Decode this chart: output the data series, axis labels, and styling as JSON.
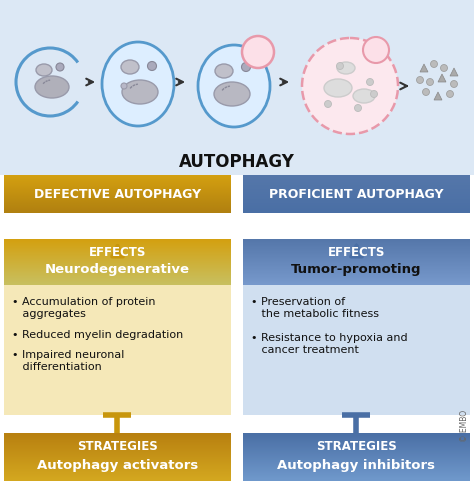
{
  "title": "AUTOPHAGY",
  "top_bg": "#dce8f5",
  "white_bg": "#ffffff",
  "left_header_text": "DEFECTIVE AUTOPHAGY",
  "right_header_text": "PROFICIENT AUTOPHAGY",
  "left_gold": "#c8960c",
  "left_gold_light": "#e8c040",
  "right_blue_dark": "#4a6fa5",
  "right_blue_light": "#8aaad0",
  "left_effects_label": "EFFECTS",
  "left_effects_sublabel": "Neurodegenerative",
  "right_effects_label": "EFFECTS",
  "right_effects_sublabel": "Tumor-promoting",
  "left_bullet_bg": "#f5e8b8",
  "right_bullet_bg": "#d0dff0",
  "left_bullets": [
    "• Accumulation of protein\n   aggregates",
    "• Reduced myelin degradation",
    "• Impaired neuronal\n   differentiation"
  ],
  "right_bullets": [
    "• Preservation of\n   the metabolic fitness",
    "• Resistance to hypoxia and\n   cancer treatment"
  ],
  "left_strat_label": "STRATEGIES",
  "left_strat_sub": "Autophagy activators",
  "right_strat_label": "STRATEGIES",
  "right_strat_sub": "Autophagy inhibitors",
  "left_arrow_color": "#c8960c",
  "right_arrow_color": "#4a6fa5",
  "copyright": "© EMBO",
  "cell_blue": "#5599cc",
  "cell_pink": "#e899aa",
  "cell_fill_blue": "#ddeeff",
  "cell_fill_pink": "#fce8ee",
  "organelle_fill": "#c0c0c8",
  "organelle_edge": "#888899"
}
